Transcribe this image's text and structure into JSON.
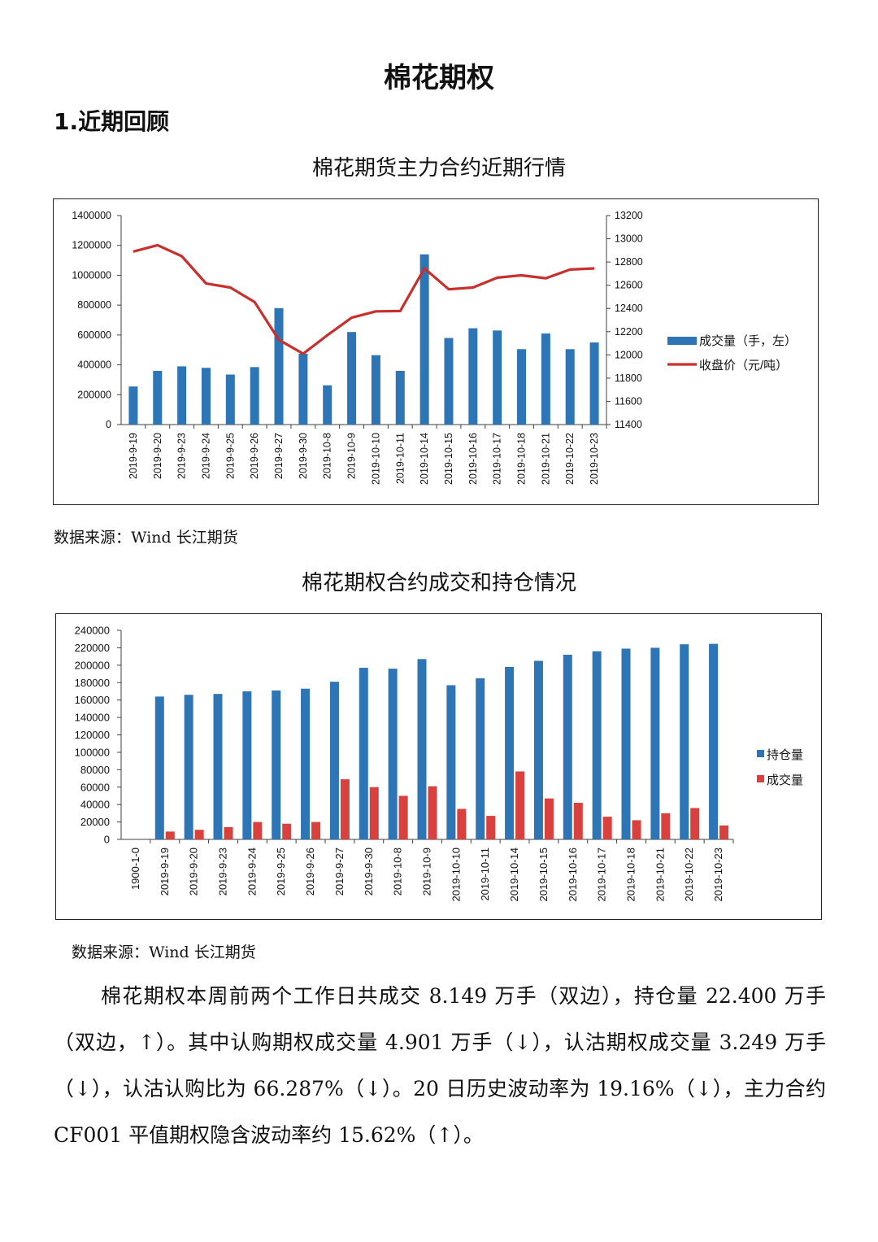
{
  "doc_title": "棉花期权",
  "section_heading": "1.近期回顾",
  "source_text": "数据来源：Wind  长江期货",
  "paragraph": "棉花期权本周前两个工作日共成交 8.149 万手（双边），持仓量 22.400 万手（双边，↑）。其中认购期权成交量 4.901 万手（↓），认沽期权成交量 3.249 万手（↓），认沽认购比为 66.287%（↓）。20 日历史波动率为 19.16%（↓），主力合约 CF001 平值期权隐含波动率约 15.62%（↑）。",
  "colors": {
    "bar_blue": "#2e75b6",
    "bar_red": "#d9413e",
    "line_red": "#c8302d",
    "axis": "#404040"
  },
  "chart_data": [
    {
      "type": "bar+line",
      "title": "棉花期货主力合约近期行情",
      "categories": [
        "2019-9-19",
        "2019-9-20",
        "2019-9-23",
        "2019-9-24",
        "2019-9-25",
        "2019-9-26",
        "2019-9-27",
        "2019-9-30",
        "2019-10-8",
        "2019-10-9",
        "2019-10-10",
        "2019-10-11",
        "2019-10-14",
        "2019-10-15",
        "2019-10-16",
        "2019-10-17",
        "2019-10-18",
        "2019-10-21",
        "2019-10-22",
        "2019-10-23"
      ],
      "series": [
        {
          "name": "成交量（手，左）",
          "type": "bar",
          "axis": "left",
          "values": [
            255000,
            360000,
            390000,
            380000,
            335000,
            385000,
            780000,
            475000,
            263000,
            620000,
            465000,
            360000,
            1140000,
            580000,
            645000,
            630000,
            505000,
            610000,
            505000,
            550000
          ]
        },
        {
          "name": "收盘价（元/吨）",
          "type": "line",
          "axis": "right",
          "values": [
            12890,
            12945,
            12850,
            12615,
            12580,
            12455,
            12130,
            12010,
            12170,
            12320,
            12375,
            12378,
            12745,
            12565,
            12580,
            12665,
            12685,
            12660,
            12735,
            12745
          ]
        }
      ],
      "ylim_left": [
        0,
        1400000
      ],
      "yticks_left": [
        "0",
        "200000",
        "400000",
        "600000",
        "800000",
        "1000000",
        "1200000",
        "1400000"
      ],
      "ylim_right": [
        11400,
        13200
      ],
      "yticks_right": [
        "11400",
        "11600",
        "11800",
        "12000",
        "12200",
        "12400",
        "12600",
        "12800",
        "13000",
        "13200"
      ],
      "legend_position": "right"
    },
    {
      "type": "bar",
      "title": "棉花期权合约成交和持仓情况",
      "categories": [
        "1900-1-0",
        "2019-9-19",
        "2019-9-20",
        "2019-9-23",
        "2019-9-24",
        "2019-9-25",
        "2019-9-26",
        "2019-9-27",
        "2019-9-30",
        "2019-10-8",
        "2019-10-9",
        "2019-10-10",
        "2019-10-11",
        "2019-10-14",
        "2019-10-15",
        "2019-10-16",
        "2019-10-17",
        "2019-10-18",
        "2019-10-21",
        "2019-10-22",
        "2019-10-23"
      ],
      "series": [
        {
          "name": "持仓量",
          "values": [
            0,
            164000,
            166000,
            167000,
            170000,
            171000,
            173000,
            181000,
            197000,
            196000,
            207000,
            177000,
            185000,
            198000,
            205000,
            212000,
            216000,
            219000,
            220000,
            224000,
            224500
          ]
        },
        {
          "name": "成交量",
          "values": [
            0,
            9000,
            11000,
            14000,
            20000,
            18000,
            20000,
            69000,
            60000,
            50000,
            61000,
            35000,
            27000,
            78000,
            47000,
            42000,
            26000,
            22000,
            30000,
            36000,
            16000
          ]
        }
      ],
      "ylim": [
        0,
        240000
      ],
      "yticks": [
        "0",
        "20000",
        "40000",
        "60000",
        "80000",
        "100000",
        "120000",
        "140000",
        "160000",
        "180000",
        "200000",
        "220000",
        "240000"
      ],
      "legend_position": "right"
    }
  ]
}
